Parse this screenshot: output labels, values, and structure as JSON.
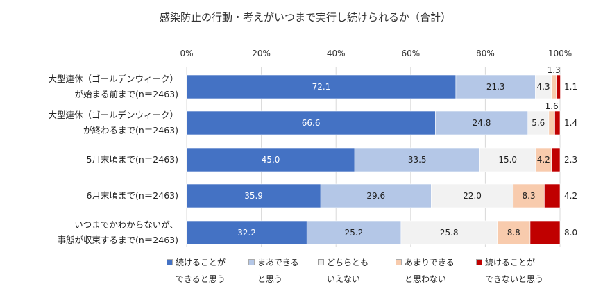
{
  "chart_data": {
    "type": "bar",
    "orientation": "horizontal-stacked-100",
    "title": "感染防止の行動・考えがいつまで実行し続けられるか（合計）",
    "x_ticks": [
      "0%",
      "20%",
      "40%",
      "60%",
      "80%",
      "100%"
    ],
    "xlim": [
      0,
      100
    ],
    "legend_position": "bottom",
    "categories": [
      [
        "大型連休（ゴールデンウィーク）",
        "が始まる前まで(n＝2463)"
      ],
      [
        "大型連休（ゴールデンウィーク）",
        "が終わるまで(n＝2463)"
      ],
      [
        "5月末頃まで(n＝2463)"
      ],
      [
        "6月末頃まで(n＝2463)"
      ],
      [
        "いつまでかわからないが、",
        "事態が収束するまで(n＝2463)"
      ]
    ],
    "series": [
      {
        "name": [
          "続けることが",
          "できると思う"
        ],
        "color": "#4472C4",
        "label_color": "#ffffff",
        "values": [
          72.1,
          66.6,
          45.0,
          35.9,
          32.2
        ],
        "labels": [
          "72.1",
          "66.6",
          "45.0",
          "35.9",
          "32.2"
        ]
      },
      {
        "name": [
          "まあできる",
          "と思う"
        ],
        "color": "#B4C7E7",
        "label_color": "#222222",
        "values": [
          21.3,
          24.8,
          33.5,
          29.6,
          25.2
        ],
        "labels": [
          "21.3",
          "24.8",
          "33.5",
          "29.6",
          "25.2"
        ]
      },
      {
        "name": [
          "どちらとも",
          "いえない"
        ],
        "color": "#F2F2F2",
        "label_color": "#222222",
        "values": [
          4.3,
          5.6,
          15.0,
          22.0,
          25.8
        ],
        "labels": [
          "4.3",
          "5.6",
          "15.0",
          "22.0",
          "25.8"
        ]
      },
      {
        "name": [
          "あまりできる",
          "と思わない"
        ],
        "color": "#F8CBAD",
        "label_color": "#222222",
        "values": [
          1.3,
          1.6,
          4.2,
          8.3,
          8.8
        ],
        "labels": [
          "1.3",
          "1.6",
          "4.2",
          "8.3",
          "8.8"
        ]
      },
      {
        "name": [
          "続けることが",
          "できないと思う"
        ],
        "color": "#C00000",
        "label_color": "#222222",
        "values": [
          1.1,
          1.4,
          2.3,
          4.2,
          8.0
        ],
        "labels": [
          "1.1",
          "1.4",
          "2.3",
          "4.2",
          "8.0"
        ]
      }
    ]
  }
}
